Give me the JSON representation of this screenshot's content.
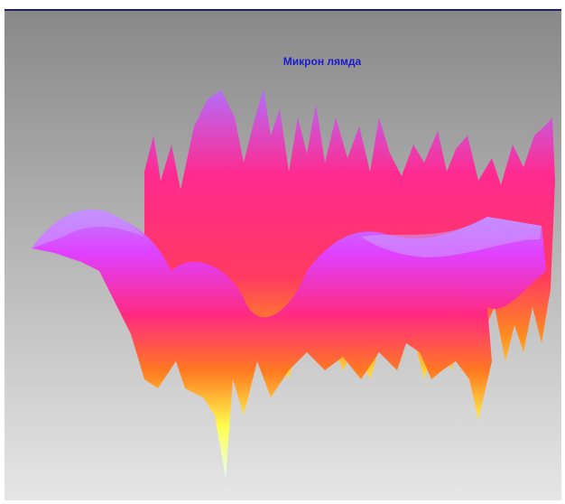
{
  "title": "Микрон лямда"
}
